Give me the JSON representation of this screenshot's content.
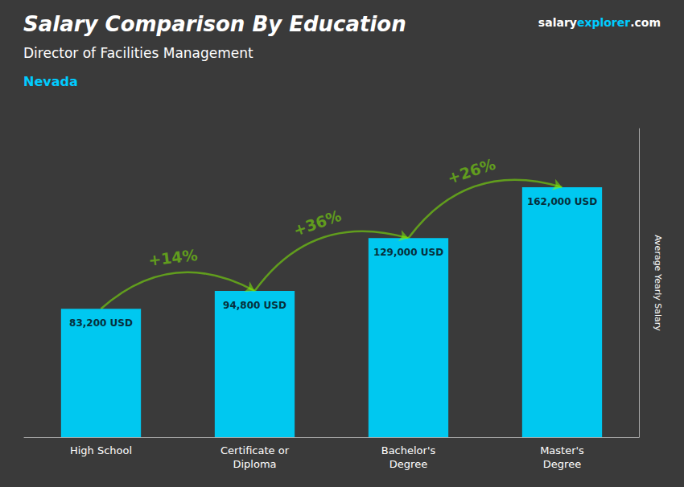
{
  "chart_data": {
    "type": "bar",
    "title": "Salary Comparison By Education",
    "subtitle": "Director of Facilities Management",
    "ylabel": "Average Yearly Salary",
    "categories": [
      "High School",
      "Certificate or\nDiploma",
      "Bachelor's\nDegree",
      "Master's\nDegree"
    ],
    "values": [
      83200,
      94800,
      129000,
      162000
    ],
    "value_labels": [
      "83,200 USD",
      "94,800 USD",
      "129,000 USD",
      "162,000 USD"
    ],
    "data_labels": true,
    "color": "#00c8f0",
    "ylim": [
      0,
      200000
    ],
    "tick_labels": "x",
    "grid": false,
    "annotations": [
      {
        "text": "Nevada",
        "color": "#00ccff"
      },
      {
        "parts": [
          "salary",
          "explorer",
          ".com"
        ],
        "colors": [
          "#ffffff",
          "#00ccff",
          "#ffffff"
        ]
      },
      {
        "text": "+14%",
        "color": "#88ff00",
        "from": "High School",
        "to": "Certificate or\nDiploma"
      },
      {
        "text": "+36%",
        "color": "#88ff00",
        "from": "Certificate or\nDiploma",
        "to": "Bachelor's\nDegree"
      },
      {
        "text": "+26%",
        "color": "#88ff00",
        "from": "Bachelor's\nDegree",
        "to": "Master's\nDegree"
      }
    ]
  }
}
